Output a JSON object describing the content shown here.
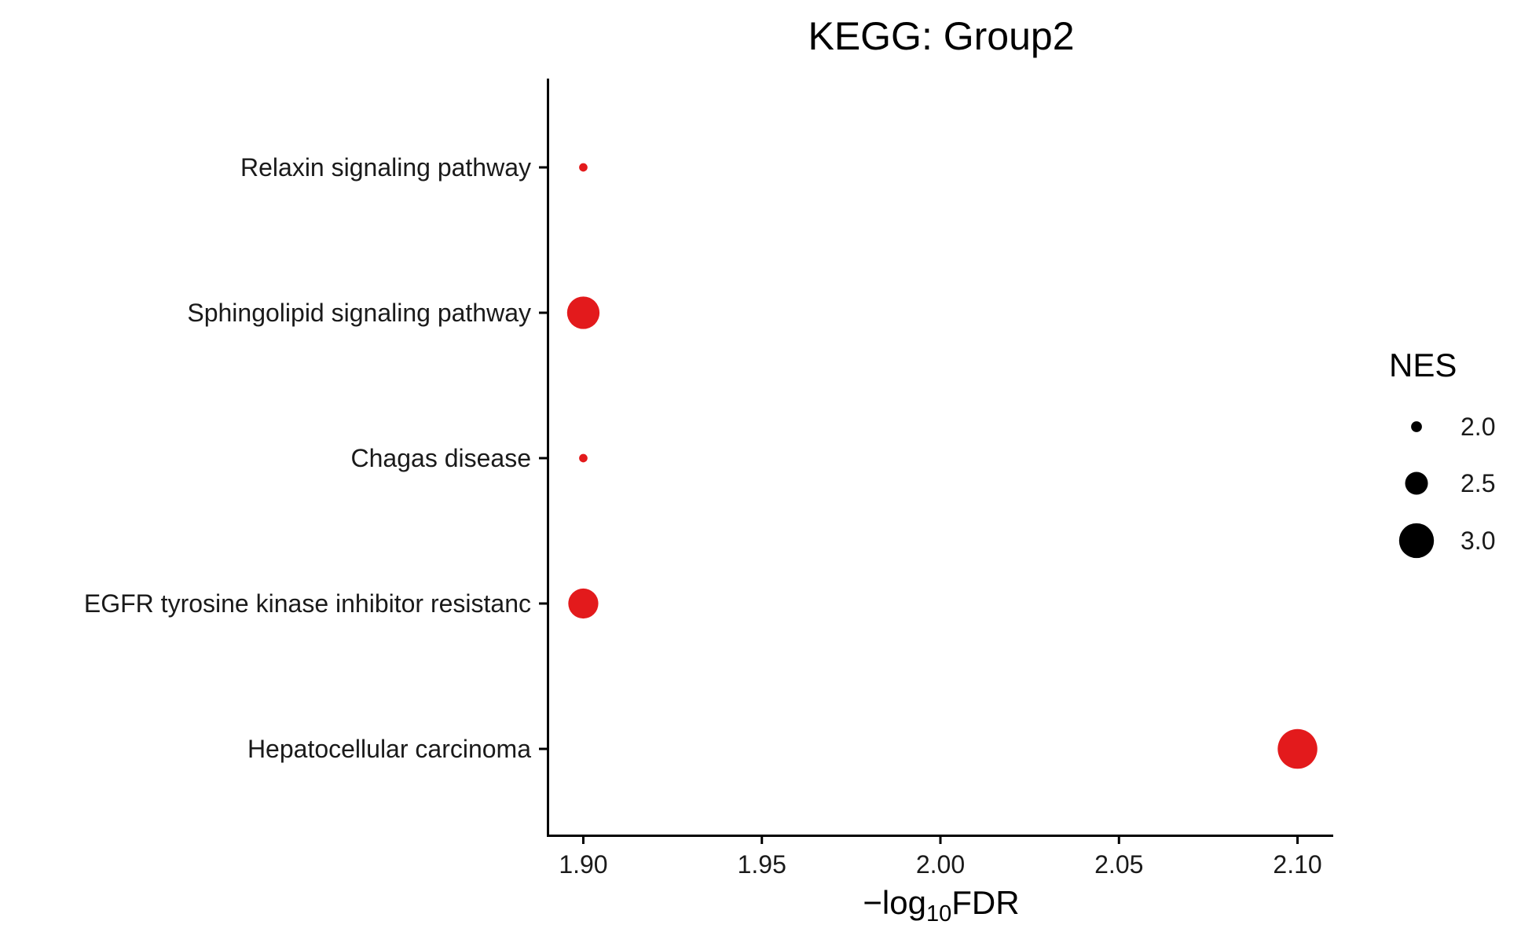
{
  "chart_data": {
    "type": "scatter",
    "title": "KEGG: Group2",
    "xlabel": {
      "prefix": "−log",
      "sub": "10",
      "suffix": "FDR"
    },
    "ylabel": "",
    "xlim": [
      1.89,
      2.11
    ],
    "x_ticks": [
      1.9,
      1.95,
      2.0,
      2.05,
      2.1
    ],
    "x_tick_labels": [
      "1.90",
      "1.95",
      "2.00",
      "2.05",
      "2.10"
    ],
    "categories": [
      "Relaxin signaling pathway",
      "Sphingolipid signaling pathway",
      "Chagas disease",
      "EGFR tyrosine kinase inhibitor resistanc",
      "Hepatocellular carcinoma"
    ],
    "points": [
      {
        "category": "Relaxin signaling pathway",
        "x": 1.9,
        "nes": 1.9
      },
      {
        "category": "Sphingolipid signaling pathway",
        "x": 1.9,
        "nes": 2.9
      },
      {
        "category": "Chagas disease",
        "x": 1.9,
        "nes": 1.9
      },
      {
        "category": "EGFR tyrosine kinase inhibitor resistanc",
        "x": 1.9,
        "nes": 2.8
      },
      {
        "category": "Hepatocellular carcinoma",
        "x": 2.1,
        "nes": 3.2
      }
    ],
    "size_legend": {
      "title": "NES",
      "entries": [
        {
          "label": "2.0",
          "value": 2.0
        },
        {
          "label": "2.5",
          "value": 2.5
        },
        {
          "label": "3.0",
          "value": 3.0
        }
      ]
    },
    "point_color": "#e31a1c",
    "legend_color": "#000000",
    "grid": false,
    "legend_position": "right"
  }
}
